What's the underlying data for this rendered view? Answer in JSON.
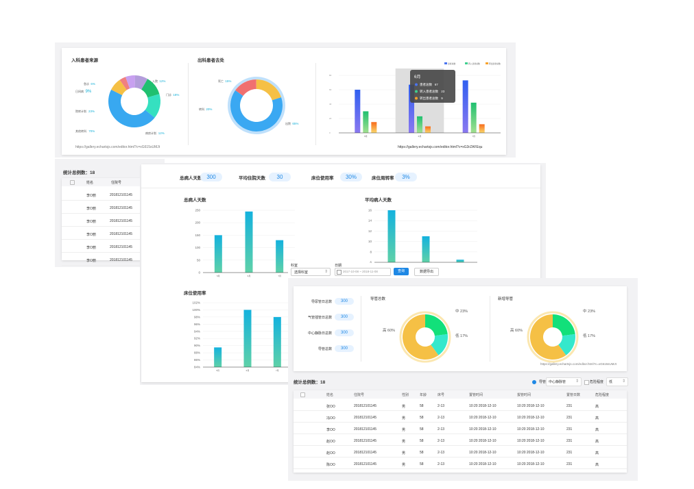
{
  "panel1": {
    "source_title": "入科患者来源",
    "dest_title": "出科患者去处",
    "url1": "https://gallery.echartsjs.com/editor.html?c=xG615sUMJt",
    "url2": "https://gallery.echartsjs.com/editor.html?c=xG3rZAFEqu",
    "source_labels": [
      {
        "name": "急诊",
        "val": "6%"
      },
      {
        "name": "日间病",
        "val": "9%"
      },
      {
        "name": "入院",
        "val": "12%"
      },
      {
        "name": "门诊",
        "val": "18%"
      },
      {
        "name": "病房计划",
        "val": "12%"
      },
      {
        "name": "院内其他转科",
        "val": "70%"
      },
      {
        "name": "外院转计划",
        "val": "23%"
      }
    ],
    "dest_labels": [
      {
        "name": "死亡",
        "val": "15%"
      },
      {
        "name": "转科",
        "val": "20%"
      },
      {
        "name": "出院",
        "val": "65%"
      }
    ],
    "legend": [
      "患者总数",
      "转入患者总数",
      "转出患者总数"
    ],
    "tooltip": {
      "title": "6月",
      "rows": [
        {
          "label": "患者总数",
          "val": "67"
        },
        {
          "label": "转入患者总数",
          "val": "23"
        },
        {
          "label": "转出患者总数",
          "val": "9"
        }
      ]
    }
  },
  "colors": {
    "blue": "#4a74f0",
    "green": "#3ecf8e",
    "orange": "#f7a32c",
    "teal": "#1fb4a8",
    "cyan": "#15b0d8",
    "yellow": "#f2c045",
    "pill": "#e6f2ff",
    "accent": "#1e88e5"
  },
  "chart_data": [
    {
      "type": "pie",
      "title": "入科患者来源",
      "categories": [
        "急诊",
        "日间病",
        "入院",
        "门诊",
        "外院转计划",
        "院内其他转科",
        "病房计划"
      ],
      "values": [
        6,
        9,
        12,
        18,
        23,
        70,
        12
      ]
    },
    {
      "type": "pie",
      "title": "出科患者去处",
      "categories": [
        "死亡",
        "转科",
        "出院"
      ],
      "values": [
        15,
        20,
        65
      ]
    },
    {
      "type": "bar",
      "categories": [
        "5月",
        "6月",
        "7月"
      ],
      "series": [
        {
          "name": "患者总数",
          "values": [
            60,
            67,
            73
          ]
        },
        {
          "name": "转入患者总数",
          "values": [
            30,
            23,
            42
          ]
        },
        {
          "name": "转出患者总数",
          "values": [
            15,
            9,
            12
          ]
        }
      ],
      "ylim": [
        0,
        80
      ],
      "yticks": [
        "80",
        "60",
        "40",
        "20",
        "0"
      ]
    },
    {
      "type": "bar",
      "title": "总病人天数",
      "categories": [
        "5月",
        "6月",
        "7月"
      ],
      "values": [
        150,
        245,
        130
      ],
      "ylim": [
        0,
        250
      ],
      "yticks": [
        "250",
        "200",
        "150",
        "100",
        "50",
        "0"
      ]
    },
    {
      "type": "bar",
      "title": "平均病人天数",
      "categories": [
        "5月",
        "6月",
        "7月"
      ],
      "values": [
        16,
        11,
        6.5
      ],
      "ylim": [
        6,
        16
      ],
      "yticks": [
        "16",
        "14",
        "12",
        "10",
        "8",
        "6"
      ]
    },
    {
      "type": "bar",
      "title": "床位使用率",
      "categories": [
        "5月",
        "6月",
        "7月"
      ],
      "values": [
        89.5,
        100,
        98
      ],
      "ylim": [
        84,
        102
      ],
      "yticks": [
        "102%",
        "100%",
        "98%",
        "96%",
        "94%",
        "92%",
        "90%",
        "88%",
        "86%",
        "84%"
      ]
    },
    {
      "type": "pie",
      "title": "导管总数",
      "categories": [
        "中",
        "低",
        "高"
      ],
      "values": [
        23,
        17,
        60
      ]
    },
    {
      "type": "pie",
      "title": "新增导管",
      "categories": [
        "中",
        "低",
        "高"
      ],
      "values": [
        23,
        17,
        60
      ]
    }
  ],
  "panel2": {
    "stat_label": "统计总例数：18",
    "headers": [
      "姓名",
      "住院号"
    ],
    "rows": [
      {
        "name": "李O丽",
        "id": "201812101145"
      },
      {
        "name": "李O丽",
        "id": "201812101145"
      },
      {
        "name": "李O丽",
        "id": "201812101145"
      },
      {
        "name": "李O丽",
        "id": "201812101145"
      },
      {
        "name": "李O丽",
        "id": "201812101145"
      },
      {
        "name": "李O丽",
        "id": "201812101145"
      }
    ]
  },
  "panel3": {
    "kpis": [
      {
        "label": "总病人天数",
        "val": "300"
      },
      {
        "label": "平均住院天数",
        "val": "30"
      },
      {
        "label": "床位使用率",
        "val": "30%"
      },
      {
        "label": "床位周转率",
        "val": "3%"
      }
    ]
  },
  "filter": {
    "dept_label": "科室",
    "dept_value": "选择科室",
    "date_label": "日期",
    "date_value": "2017-10-08 ~ 2018-11-08",
    "query_btn": "查询",
    "export_btn": "数据导出"
  },
  "panel4": {
    "metrics": [
      {
        "label": "导尿管日总数",
        "val": "300"
      },
      {
        "label": "气管插管日总数",
        "val": "300"
      },
      {
        "label": "中心静脉日总数",
        "val": "300"
      },
      {
        "label": "导管总数",
        "val": "300"
      }
    ],
    "pie_labels": [
      {
        "label": "中",
        "val": "23%"
      },
      {
        "label": "低",
        "val": "17%"
      },
      {
        "label": "高",
        "val": "60%"
      }
    ],
    "url": "https://gallery.echartsjs.com/editor.html?c=xG615sUMJt",
    "stat_label": "统计总例数：18",
    "radio_label": "导管",
    "select_value": "中心静脉管",
    "check_label": "危险程度",
    "select2_value": "低",
    "headers": [
      "姓名",
      "住院号",
      "性别",
      "年龄",
      "床号",
      "置管时间",
      "拔管时间",
      "置管日数",
      "危险程度"
    ],
    "rows": [
      {
        "name": "张OO",
        "id": "201812101145",
        "sex": "男",
        "age": "58",
        "bed": "2-13",
        "t1": "10:20  2018-12-10",
        "t2": "10:20  2018-12-10",
        "days": "231",
        "risk": "高"
      },
      {
        "name": "冯OO",
        "id": "201812101145",
        "sex": "男",
        "age": "58",
        "bed": "2-13",
        "t1": "10:20  2018-12-10",
        "t2": "10:20  2018-12-10",
        "days": "231",
        "risk": "高"
      },
      {
        "name": "李OO",
        "id": "201812101145",
        "sex": "男",
        "age": "58",
        "bed": "2-13",
        "t1": "10:20  2018-12-10",
        "t2": "10:20  2018-12-10",
        "days": "231",
        "risk": "高"
      },
      {
        "name": "赵OO",
        "id": "201812101145",
        "sex": "男",
        "age": "58",
        "bed": "2-13",
        "t1": "10:20  2018-12-10",
        "t2": "10:20  2018-12-10",
        "days": "231",
        "risk": "高"
      },
      {
        "name": "赵OO",
        "id": "201812101145",
        "sex": "男",
        "age": "58",
        "bed": "2-13",
        "t1": "10:20  2018-12-10",
        "t2": "10:20  2018-12-10",
        "days": "231",
        "risk": "高"
      },
      {
        "name": "陈OO",
        "id": "201812101145",
        "sex": "男",
        "age": "58",
        "bed": "2-13",
        "t1": "10:20  2018-12-10",
        "t2": "10:20  2018-12-10",
        "days": "231",
        "risk": "高"
      }
    ]
  }
}
